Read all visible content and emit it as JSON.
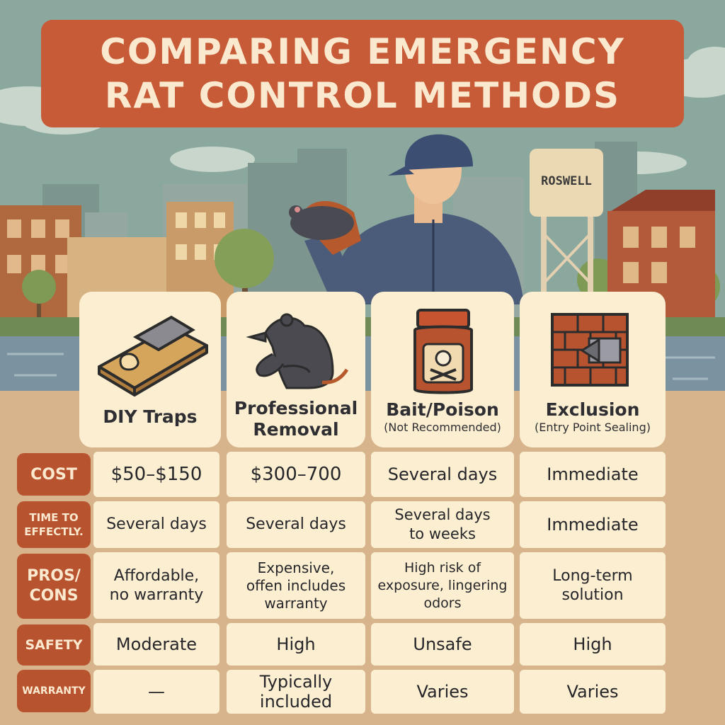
{
  "title": {
    "line1": "COMPARING EMERGENCY",
    "line2": "RAT CONTROL METHODS"
  },
  "sign": "ROSWELL",
  "columns": [
    {
      "title": "DIY Traps",
      "subtitle": "",
      "icon": "mousetrap-icon"
    },
    {
      "title": "Professional\nRemoval",
      "subtitle": "",
      "icon": "rat-icon"
    },
    {
      "title": "Bait/Poison",
      "subtitle": "(Not Recommended)",
      "icon": "poison-jar-icon"
    },
    {
      "title": "Exclusion",
      "subtitle": "(Entry Point Sealing)",
      "icon": "brick-wall-icon"
    }
  ],
  "rows": [
    {
      "label": "COST",
      "values": [
        "$50–$150",
        "$300–700",
        "Several days",
        "Immediate"
      ]
    },
    {
      "label": "TIME TO\nEFFECTLY.",
      "values": [
        "Several days",
        "Several days",
        "Several days\nto weeks",
        "Immediate"
      ]
    },
    {
      "label": "PROS/\nCONS",
      "values": [
        "Affordable,\nno warranty",
        "Expensive,\noffen includes\nwarranty",
        "High risk of\nexposure, lingering\nodors",
        "Long-term\nsolution"
      ]
    },
    {
      "label": "SAFETY",
      "values": [
        "Moderate",
        "High",
        "Unsafe",
        "High"
      ]
    },
    {
      "label": "WARRANTY",
      "values": [
        "—",
        "Typically\nincluded",
        "Varies",
        "Varies"
      ]
    }
  ],
  "colors": {
    "banner": "#c75a37",
    "label": "#b8532f",
    "card": "#fcefd1",
    "text": "#26262a"
  }
}
